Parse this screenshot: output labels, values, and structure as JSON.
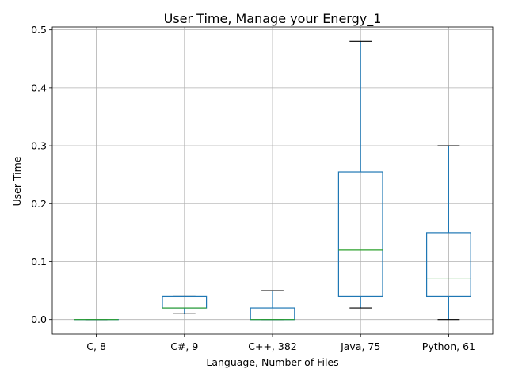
{
  "chart_data": {
    "type": "boxplot",
    "title": "User Time, Manage your Energy_1",
    "xlabel": "Language, Number of Files",
    "ylabel": "User Time",
    "ylim": [
      -0.025,
      0.505
    ],
    "yticks": [
      0.0,
      0.1,
      0.2,
      0.3,
      0.4,
      0.5
    ],
    "ytick_labels": [
      "0.0",
      "0.1",
      "0.2",
      "0.3",
      "0.4",
      "0.5"
    ],
    "grid": true,
    "categories": [
      "C, 8",
      "C#, 9",
      "C++, 382",
      "Java, 75",
      "Python, 61"
    ],
    "boxes": [
      {
        "label": "C, 8",
        "whisker_low": 0.0,
        "q1": 0.0,
        "median": 0.0,
        "q3": 0.0,
        "whisker_high": 0.0
      },
      {
        "label": "C#, 9",
        "whisker_low": 0.01,
        "q1": 0.02,
        "median": 0.02,
        "q3": 0.04,
        "whisker_high": 0.04
      },
      {
        "label": "C++, 382",
        "whisker_low": 0.0,
        "q1": 0.0,
        "median": 0.0,
        "q3": 0.02,
        "whisker_high": 0.05
      },
      {
        "label": "Java, 75",
        "whisker_low": 0.02,
        "q1": 0.04,
        "median": 0.12,
        "q3": 0.255,
        "whisker_high": 0.48
      },
      {
        "label": "Python, 61",
        "whisker_low": 0.0,
        "q1": 0.04,
        "median": 0.07,
        "q3": 0.15,
        "whisker_high": 0.3
      }
    ],
    "colors": {
      "box": "#1f77b4",
      "median": "#2ca02c",
      "whisker_cap": "#000000",
      "grid": "#b0b0b0"
    }
  }
}
